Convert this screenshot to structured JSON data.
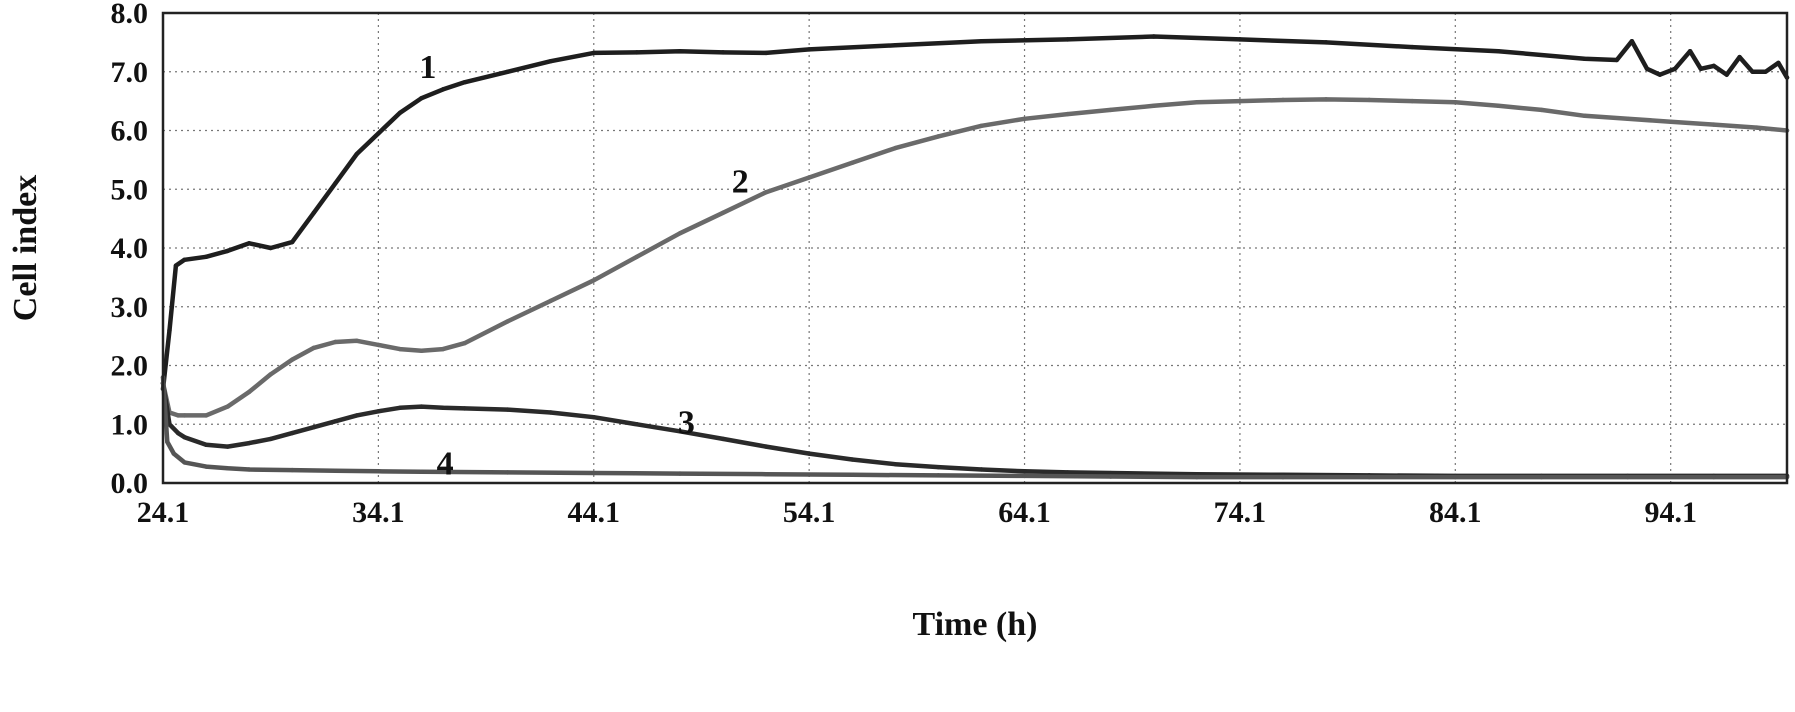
{
  "chart_data": {
    "type": "line",
    "title": "",
    "xlabel": "Time (h)",
    "ylabel": "Cell index",
    "xlim": [
      24.1,
      99.5
    ],
    "ylim": [
      0.0,
      8.0
    ],
    "grid": true,
    "x_ticks": [
      "24.1",
      "34.1",
      "44.1",
      "54.1",
      "64.1",
      "74.1",
      "84.1",
      "94.1"
    ],
    "y_ticks": [
      "0.0",
      "1.0",
      "2.0",
      "3.0",
      "4.0",
      "5.0",
      "6.0",
      "7.0",
      "8.0"
    ],
    "series": [
      {
        "name": "1",
        "color": "#1e1e1e",
        "x": [
          24.1,
          24.4,
          24.7,
          25.1,
          26.1,
          27.1,
          28.1,
          29.1,
          30.1,
          31.1,
          32.1,
          33.1,
          34.1,
          35.1,
          36.1,
          37.1,
          38.1,
          40.1,
          42.1,
          44.1,
          46.1,
          48.1,
          50.1,
          52.1,
          54.1,
          58.1,
          62.1,
          66.1,
          70.1,
          74.1,
          78.1,
          82.1,
          86.1,
          90.1,
          91.6,
          92.3,
          93.0,
          93.6,
          94.3,
          95.0,
          95.5,
          96.1,
          96.7,
          97.3,
          97.9,
          98.5,
          99.1,
          99.5
        ],
        "values": [
          1.6,
          2.6,
          3.7,
          3.8,
          3.85,
          3.95,
          4.08,
          4.0,
          4.1,
          4.6,
          5.1,
          5.6,
          5.95,
          6.3,
          6.55,
          6.7,
          6.82,
          7.0,
          7.18,
          7.32,
          7.33,
          7.35,
          7.33,
          7.32,
          7.38,
          7.45,
          7.52,
          7.55,
          7.6,
          7.55,
          7.5,
          7.42,
          7.35,
          7.22,
          7.2,
          7.52,
          7.05,
          6.95,
          7.05,
          7.35,
          7.05,
          7.1,
          6.95,
          7.25,
          7.0,
          7.0,
          7.15,
          6.9
        ]
      },
      {
        "name": "2",
        "color": "#6a6a6a",
        "x": [
          24.1,
          24.4,
          24.8,
          25.1,
          26.1,
          27.1,
          28.1,
          29.1,
          30.1,
          31.1,
          32.1,
          33.1,
          34.1,
          35.1,
          36.1,
          37.1,
          38.1,
          40.1,
          42.1,
          44.1,
          46.1,
          48.1,
          50.1,
          52.1,
          54.1,
          56.1,
          58.1,
          60.1,
          62.1,
          64.1,
          66.1,
          68.1,
          70.1,
          72.1,
          74.1,
          76.1,
          78.1,
          80.1,
          82.1,
          84.1,
          86.1,
          88.1,
          90.1,
          92.1,
          94.1,
          96.1,
          98.1,
          99.5
        ],
        "values": [
          1.7,
          1.2,
          1.15,
          1.15,
          1.15,
          1.3,
          1.55,
          1.85,
          2.1,
          2.3,
          2.4,
          2.42,
          2.35,
          2.28,
          2.25,
          2.28,
          2.38,
          2.75,
          3.1,
          3.45,
          3.85,
          4.25,
          4.6,
          4.95,
          5.2,
          5.45,
          5.7,
          5.9,
          6.08,
          6.2,
          6.28,
          6.35,
          6.42,
          6.48,
          6.5,
          6.52,
          6.53,
          6.52,
          6.5,
          6.48,
          6.42,
          6.35,
          6.25,
          6.2,
          6.15,
          6.1,
          6.05,
          6.0
        ]
      },
      {
        "name": "3",
        "color": "#2a2a2a",
        "x": [
          24.1,
          24.4,
          24.8,
          25.1,
          26.1,
          27.1,
          28.1,
          29.1,
          30.1,
          31.1,
          32.1,
          33.1,
          34.1,
          35.1,
          36.1,
          37.1,
          38.1,
          40.1,
          42.1,
          44.1,
          46.1,
          48.1,
          50.1,
          52.1,
          54.1,
          56.1,
          58.1,
          60.1,
          62.1,
          64.1,
          66.1,
          68.1,
          72.1,
          76.1,
          80.1,
          84.1,
          88.1,
          92.1,
          96.1,
          99.5
        ],
        "values": [
          1.7,
          1.0,
          0.85,
          0.78,
          0.65,
          0.62,
          0.68,
          0.75,
          0.85,
          0.95,
          1.05,
          1.15,
          1.22,
          1.28,
          1.3,
          1.28,
          1.27,
          1.25,
          1.2,
          1.12,
          1.0,
          0.88,
          0.75,
          0.62,
          0.5,
          0.4,
          0.32,
          0.27,
          0.23,
          0.2,
          0.18,
          0.17,
          0.15,
          0.14,
          0.13,
          0.12,
          0.12,
          0.12,
          0.12,
          0.12
        ]
      },
      {
        "name": "4",
        "color": "#555555",
        "x": [
          24.1,
          24.3,
          24.6,
          25.1,
          26.1,
          27.1,
          28.1,
          30.1,
          32.1,
          34.1,
          36.1,
          40.1,
          44.1,
          48.1,
          52.1,
          56.1,
          60.1,
          64.1,
          68.1,
          72.1,
          76.1,
          80.1,
          84.1,
          88.1,
          92.1,
          96.1,
          99.5
        ],
        "values": [
          1.8,
          0.7,
          0.5,
          0.35,
          0.28,
          0.25,
          0.23,
          0.22,
          0.21,
          0.2,
          0.19,
          0.18,
          0.17,
          0.16,
          0.15,
          0.14,
          0.13,
          0.12,
          0.11,
          0.1,
          0.1,
          0.1,
          0.1,
          0.1,
          0.1,
          0.1,
          0.1
        ]
      }
    ],
    "annotations": [
      {
        "text": "1",
        "series": "1",
        "x": 36.4,
        "y": 7.1
      },
      {
        "text": "2",
        "series": "2",
        "x": 50.9,
        "y": 5.15
      },
      {
        "text": "3",
        "series": "3",
        "x": 48.4,
        "y": 1.05
      },
      {
        "text": "4",
        "series": "4",
        "x": 37.2,
        "y": 0.35
      }
    ]
  }
}
